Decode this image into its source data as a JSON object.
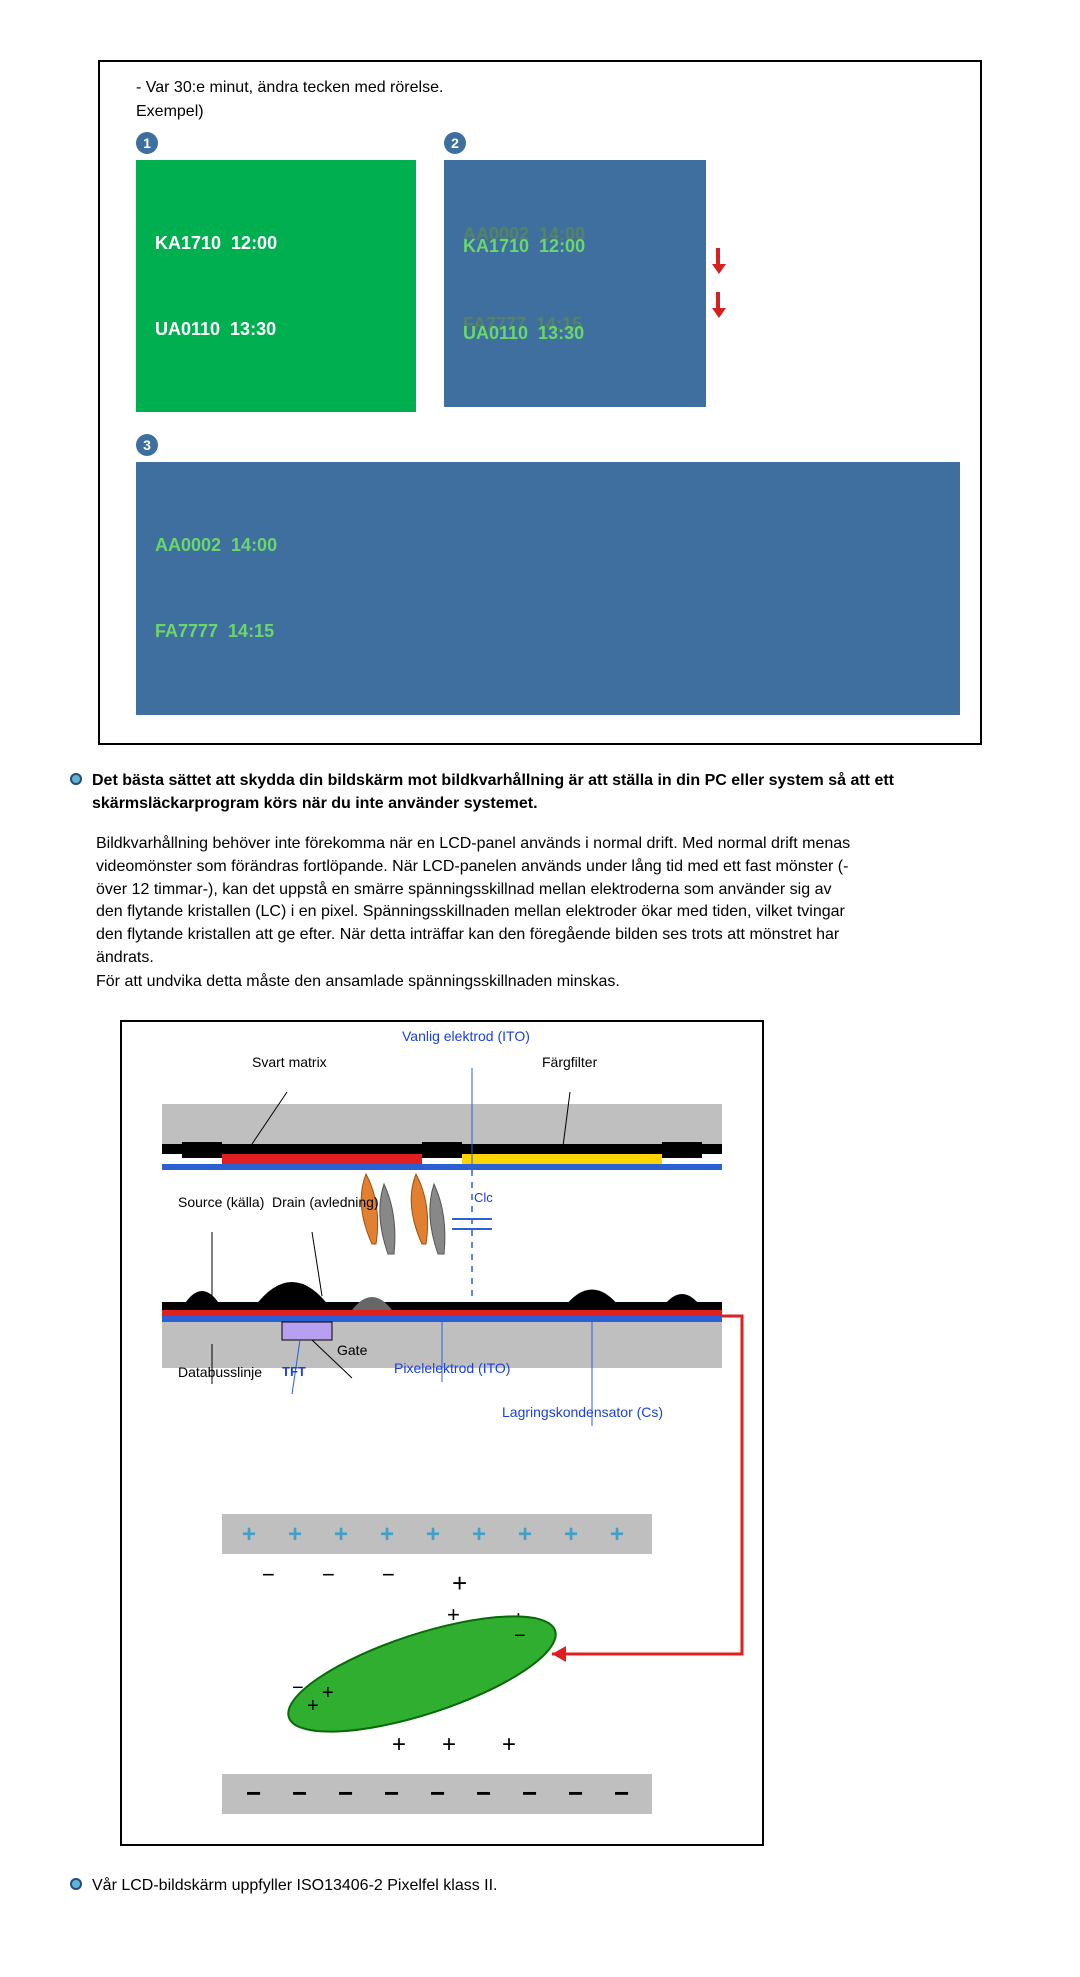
{
  "intro": {
    "line1": "- Var 30:e minut, ändra tecken med rörelse.",
    "line2": "Exempel)"
  },
  "examples": {
    "badge_bg": "#3e6f9e",
    "badge_fg": "#ffffff",
    "panel1": {
      "num": "1",
      "bg": "#00b050",
      "fg": "#ffffff",
      "border": "#00b050",
      "line1": "KA1710  12:00",
      "line2": "UA0110  13:30"
    },
    "panel2": {
      "num": "2",
      "bg": "#3e6f9e",
      "fg": "#6bd66b",
      "border": "#3e6f9e",
      "ghost_a": "AA0002  14:00",
      "main_a": "KA1710  12:00",
      "ghost_b": "FA7777  14:15",
      "main_b": "UA0110  13:30",
      "arrow_color": "#d42020"
    },
    "panel3": {
      "num": "3",
      "bg": "#3e6f9e",
      "fg": "#6bd66b",
      "border": "#3e6f9e",
      "line1": "AA0002  14:00",
      "line2": "FA7777  14:15"
    }
  },
  "bullet1": {
    "dot_outer": "#2c4c78",
    "dot_inner": "#5fb3d4",
    "text": "Det bästa sättet att skydda din bildskärm mot bildkvarhållning är att ställa in din PC eller system så att ett skärmsläckarprogram körs när du inte använder systemet."
  },
  "para": {
    "p1": "Bildkvarhållning behöver inte förekomma när en LCD-panel används i normal drift. Med normal drift menas videomönster som förändras fortlöpande. När LCD-panelen används under lång tid med ett fast mönster (-över 12 timmar-), kan det uppstå en smärre spänningsskillnad mellan elektroderna som använder sig av den flytande kristallen (LC) i en pixel. Spänningsskillnaden mellan elektroder ökar med tiden, vilket tvingar den flytande kristallen att ge efter. När detta inträffar kan den föregående bilden ses trots att mönstret har ändrats.",
    "p2": "För att undvika detta måste den ansamlade spänningsskillnaden minskas."
  },
  "diagram": {
    "labels": {
      "vanlig": "Vanlig elektrod (ITO)",
      "svart": "Svart matrix",
      "farg": "Färgfilter",
      "source": "Source (källa)",
      "drain": "Drain (avledning)",
      "clc": "Clc",
      "gate": "Gate",
      "databuss": "Databusslinje",
      "tft": "TFT",
      "pixel": "Pixelelektrod (ITO)",
      "lagring": "Lagringskondensator (Cs)"
    },
    "colors": {
      "gray": "#bfbfbf",
      "black": "#000000",
      "red": "#e02020",
      "yellow": "#ffd400",
      "blue": "#2b5fd4",
      "green": "#2fae2f",
      "dkgray": "#666666",
      "lilac": "#b8a0f0",
      "plus": "#40a0c8",
      "arrow": "#e02020"
    }
  },
  "bullet2": {
    "dot_outer": "#2c4c78",
    "dot_inner": "#5fb3d4",
    "text": "Vår LCD-bildskärm uppfyller ISO13406-2 Pixelfel klass II."
  }
}
